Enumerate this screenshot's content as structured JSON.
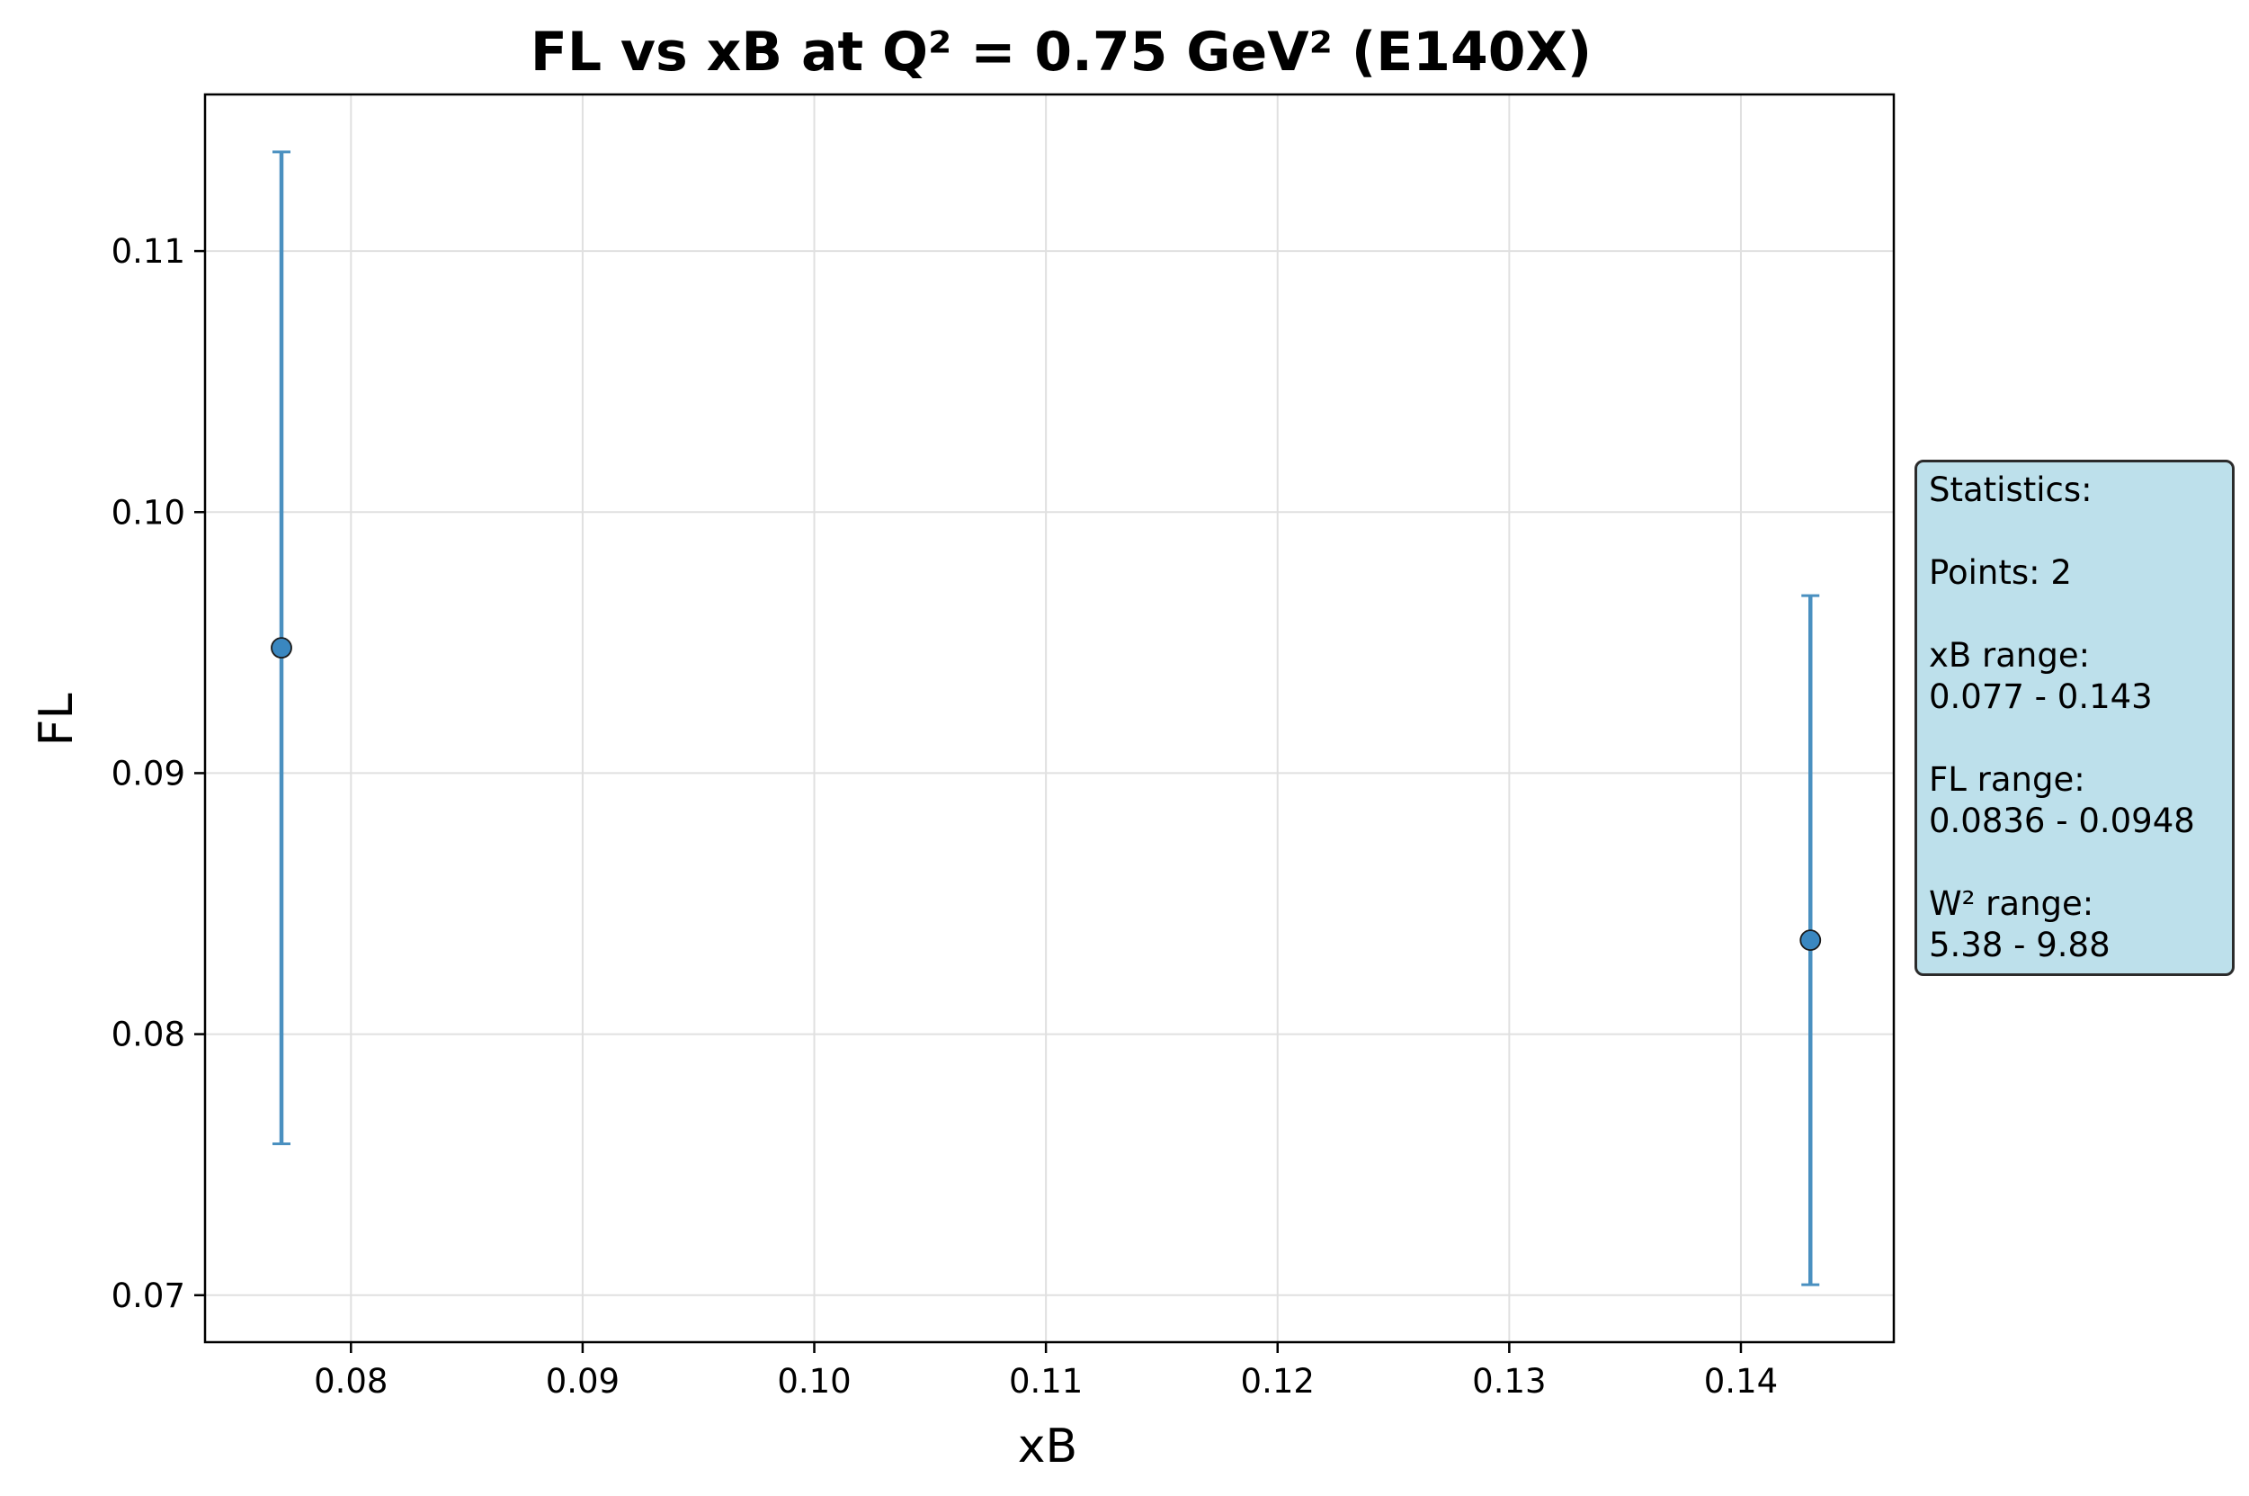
{
  "chart_data": {
    "type": "scatter",
    "title": "FL vs xB at Q² = 0.75 GeV² (E140X)",
    "xlabel": "xB",
    "ylabel": "FL",
    "xlim": [
      0.0737,
      0.1466
    ],
    "ylim": [
      0.0682,
      0.116
    ],
    "x_ticks": [
      0.08,
      0.09,
      0.1,
      0.11,
      0.12,
      0.13,
      0.14
    ],
    "x_tick_labels": [
      "0.08",
      "0.09",
      "0.10",
      "0.11",
      "0.12",
      "0.13",
      "0.14"
    ],
    "y_ticks": [
      0.07,
      0.08,
      0.09,
      0.1,
      0.11
    ],
    "y_tick_labels": [
      "0.07",
      "0.08",
      "0.09",
      "0.10",
      "0.11"
    ],
    "grid": true,
    "points": [
      {
        "x": 0.077,
        "y": 0.0948,
        "yerr": 0.019
      },
      {
        "x": 0.143,
        "y": 0.0836,
        "yerr": 0.0132
      }
    ],
    "colors": {
      "marker": "#3a87c0",
      "errorbar": "#4a90c0",
      "grid": "#e0e0e0",
      "box_fill": "#add8e6"
    }
  },
  "stats_box": {
    "lines": [
      "Statistics:",
      "",
      "Points: 2",
      "",
      "xB range:",
      "0.077 - 0.143",
      "",
      "FL range:",
      "0.0836 - 0.0948",
      "",
      "W² range:",
      "5.38 - 9.88"
    ]
  }
}
